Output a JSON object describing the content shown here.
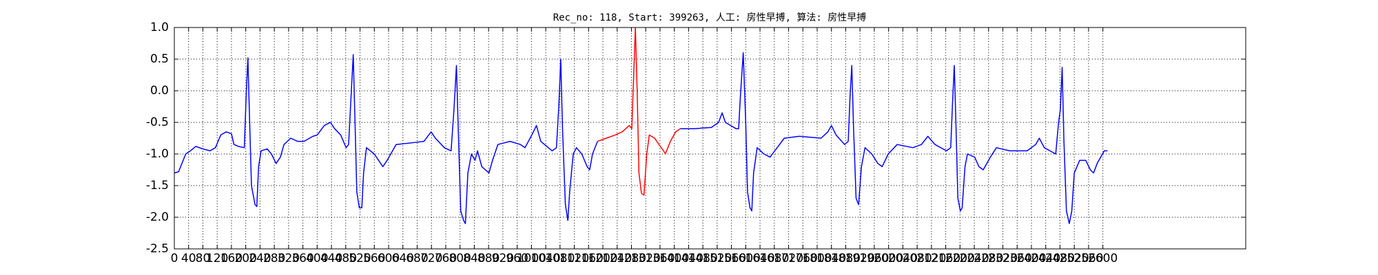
{
  "chart_data": {
    "type": "line",
    "title": "Rec_no: 118, Start: 399263, 人工: 房性早搏, 算法: 房性早搏",
    "xlim": [
      0,
      3000
    ],
    "ylim": [
      -2.5,
      1.0
    ],
    "grid": true,
    "xticks": [
      0,
      40,
      80,
      120,
      160,
      200,
      240,
      280,
      320,
      360,
      400,
      440,
      480,
      520,
      560,
      600,
      640,
      680,
      720,
      760,
      800,
      840,
      880,
      920,
      960,
      1000,
      1040,
      1080,
      1120,
      1160,
      1200,
      1240,
      1280,
      1320,
      1360,
      1400,
      1440,
      1480,
      1520,
      1560,
      1600,
      1640,
      1680,
      1720,
      1760,
      1800,
      1840,
      1880,
      1920,
      1960,
      2000,
      2040,
      2080,
      2120,
      2160,
      2200,
      2240,
      2280,
      2320,
      2360,
      2400,
      2440,
      2480,
      2520,
      2560,
      2600
    ],
    "yticks": [
      {
        "value": -2.5,
        "label": "-2.5"
      },
      {
        "value": -2,
        "label": "-2.0"
      },
      {
        "value": -1.5,
        "label": "-1.5"
      },
      {
        "value": -1,
        "label": "-1.0"
      },
      {
        "value": -0.5,
        "label": "-0.5"
      },
      {
        "value": 0,
        "label": "0.0"
      },
      {
        "value": 0.5,
        "label": "0.5"
      },
      {
        "value": 1,
        "label": "1.0"
      }
    ],
    "series": [
      {
        "color": "#0000ff",
        "x": [
          0,
          12,
          32,
          45,
          60,
          80,
          100,
          115,
          130,
          145,
          160,
          167,
          180,
          196,
          201,
          206,
          211,
          216,
          226,
          231,
          236,
          243,
          260,
          272,
          285,
          297,
          307,
          326,
          345,
          363,
          388,
          400,
          420,
          437,
          449,
          466,
          481,
          488,
          493,
          501,
          506,
          511,
          518,
          525,
          530,
          538,
          560,
          572,
          584,
          596,
          621,
          670,
          699,
          719,
          731,
          756,
          775,
          783,
          790,
          795,
          802,
          810,
          815,
          822,
          832,
          842,
          849,
          861,
          881,
          891,
          906,
          940,
          969,
          982,
          1001,
          1014,
          1026,
          1058,
          1070,
          1077,
          1082,
          1087,
          1095,
          1102,
          1107,
          1117,
          1126,
          1141,
          1156,
          1163,
          1171,
          1185
        ],
        "values": [
          -1.3,
          -1.28,
          -1.0,
          -0.95,
          -0.88,
          -0.92,
          -0.95,
          -0.9,
          -0.7,
          -0.65,
          -0.68,
          -0.85,
          -0.88,
          -0.9,
          -0.1,
          0.52,
          -0.5,
          -1.5,
          -1.8,
          -1.83,
          -1.2,
          -0.95,
          -0.92,
          -1.0,
          -1.15,
          -1.05,
          -0.85,
          -0.75,
          -0.8,
          -0.8,
          -0.72,
          -0.7,
          -0.55,
          -0.5,
          -0.6,
          -0.7,
          -0.9,
          -0.85,
          -0.3,
          0.57,
          -0.5,
          -1.6,
          -1.85,
          -1.85,
          -1.3,
          -0.9,
          -1.0,
          -1.1,
          -1.2,
          -1.1,
          -0.85,
          -0.82,
          -0.8,
          -0.65,
          -0.75,
          -0.9,
          -0.95,
          -0.3,
          0.4,
          -0.6,
          -1.9,
          -2.05,
          -2.1,
          -1.3,
          -1.0,
          -1.1,
          -0.95,
          -1.2,
          -1.3,
          -1.1,
          -0.85,
          -0.8,
          -0.85,
          -0.9,
          -0.7,
          -0.55,
          -0.8,
          -0.95,
          -0.9,
          -0.2,
          0.5,
          -0.6,
          -1.8,
          -2.05,
          -1.6,
          -1.0,
          -0.9,
          -1.0,
          -1.2,
          -1.25,
          -1.0,
          -0.8
        ]
      },
      {
        "color": "#ff0000",
        "x": [
          1185,
          1210,
          1234,
          1254,
          1274,
          1281,
          1286,
          1291,
          1296,
          1301,
          1308,
          1315,
          1323,
          1330,
          1345,
          1357,
          1370,
          1375,
          1389,
          1404,
          1417
        ],
        "values": [
          -0.8,
          -0.75,
          -0.7,
          -0.65,
          -0.55,
          -0.6,
          0.2,
          1.0,
          0.0,
          -1.3,
          -1.62,
          -1.65,
          -1.0,
          -0.7,
          -0.75,
          -0.85,
          -0.95,
          -1.0,
          -0.8,
          -0.65,
          -0.6
        ]
      },
      {
        "color": "#0000ff",
        "x": [
          1417,
          1455,
          1504,
          1524,
          1534,
          1543,
          1558,
          1573,
          1580,
          1585,
          1593,
          1600,
          1605,
          1612,
          1617,
          1622,
          1632,
          1651,
          1668,
          1688,
          1708,
          1750,
          1811,
          1830,
          1840,
          1853,
          1877,
          1887,
          1892,
          1897,
          1902,
          1909,
          1916,
          1924,
          1934,
          1953,
          1970,
          1982,
          1999,
          2024,
          2068,
          2092,
          2110,
          2130,
          2162,
          2174,
          2179,
          2184,
          2189,
          2194,
          2201,
          2206,
          2214,
          2221,
          2241,
          2253,
          2265,
          2285,
          2302,
          2339,
          2388,
          2412,
          2422,
          2436,
          2468,
          2476,
          2481,
          2486,
          2491,
          2498,
          2506,
          2513,
          2520,
          2535,
          2552,
          2565,
          2574,
          2584,
          2604,
          2613
        ],
        "values": [
          -0.6,
          -0.6,
          -0.58,
          -0.5,
          -0.35,
          -0.5,
          -0.55,
          -0.6,
          -0.6,
          -0.1,
          0.6,
          -0.5,
          -1.6,
          -1.85,
          -1.9,
          -1.3,
          -0.9,
          -1.0,
          -1.05,
          -0.9,
          -0.75,
          -0.72,
          -0.75,
          -0.65,
          -0.55,
          -0.7,
          -0.85,
          -0.8,
          -0.1,
          0.4,
          -0.6,
          -1.7,
          -1.8,
          -1.2,
          -0.9,
          -1.0,
          -1.15,
          -1.2,
          -1.0,
          -0.85,
          -0.9,
          -0.85,
          -0.72,
          -0.85,
          -0.95,
          -0.9,
          -0.2,
          0.4,
          -0.6,
          -1.7,
          -1.9,
          -1.85,
          -1.2,
          -1.0,
          -1.05,
          -1.2,
          -1.25,
          -1.05,
          -0.9,
          -0.95,
          -0.95,
          -0.85,
          -0.75,
          -0.9,
          -1.0,
          -0.5,
          -0.3,
          0.37,
          -0.8,
          -1.9,
          -2.1,
          -1.9,
          -1.3,
          -1.1,
          -1.1,
          -1.25,
          -1.3,
          -1.15,
          -0.95,
          -0.95
        ]
      }
    ]
  }
}
